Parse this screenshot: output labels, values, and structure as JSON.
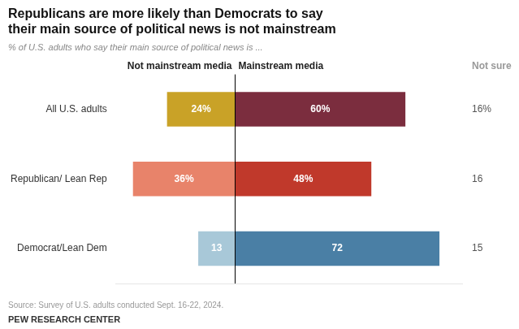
{
  "chart_data": {
    "type": "bar",
    "orientation": "horizontal",
    "title": "Republicans are more likely than Democrats to say\ntheir main source of political news is not mainstream",
    "subtitle": "% of U.S. adults who say their main source of political news is ...",
    "annotations": [
      "Source: Survey of U.S. adults conducted Sept. 16-22, 2024.",
      "PEW RESEARCH CENTER"
    ],
    "categories": [
      "All U.S. adults",
      "Republican/ Lean Rep",
      "Democrat/Lean Dem"
    ],
    "series": [
      {
        "name": "Not mainstream media",
        "colors": [
          "#c9a227",
          "#e8836a",
          "#a8c8d8"
        ],
        "values": [
          24,
          36,
          13
        ],
        "value_labels": [
          "24%",
          "36%",
          "13"
        ]
      },
      {
        "name": "Mainstream media",
        "colors": [
          "#7b2d3e",
          "#c0392b",
          "#4a7fa5"
        ],
        "values": [
          60,
          48,
          72
        ],
        "value_labels": [
          "60%",
          "48%",
          "72"
        ]
      },
      {
        "name": "Not sure",
        "type": "text",
        "color": "#555555",
        "values": [
          16,
          16,
          15
        ],
        "value_labels": [
          "16%",
          "16",
          "15"
        ]
      }
    ],
    "xlim": [
      -42,
      80
    ],
    "data_labels": true,
    "grid": false,
    "tick_labels": "y"
  }
}
